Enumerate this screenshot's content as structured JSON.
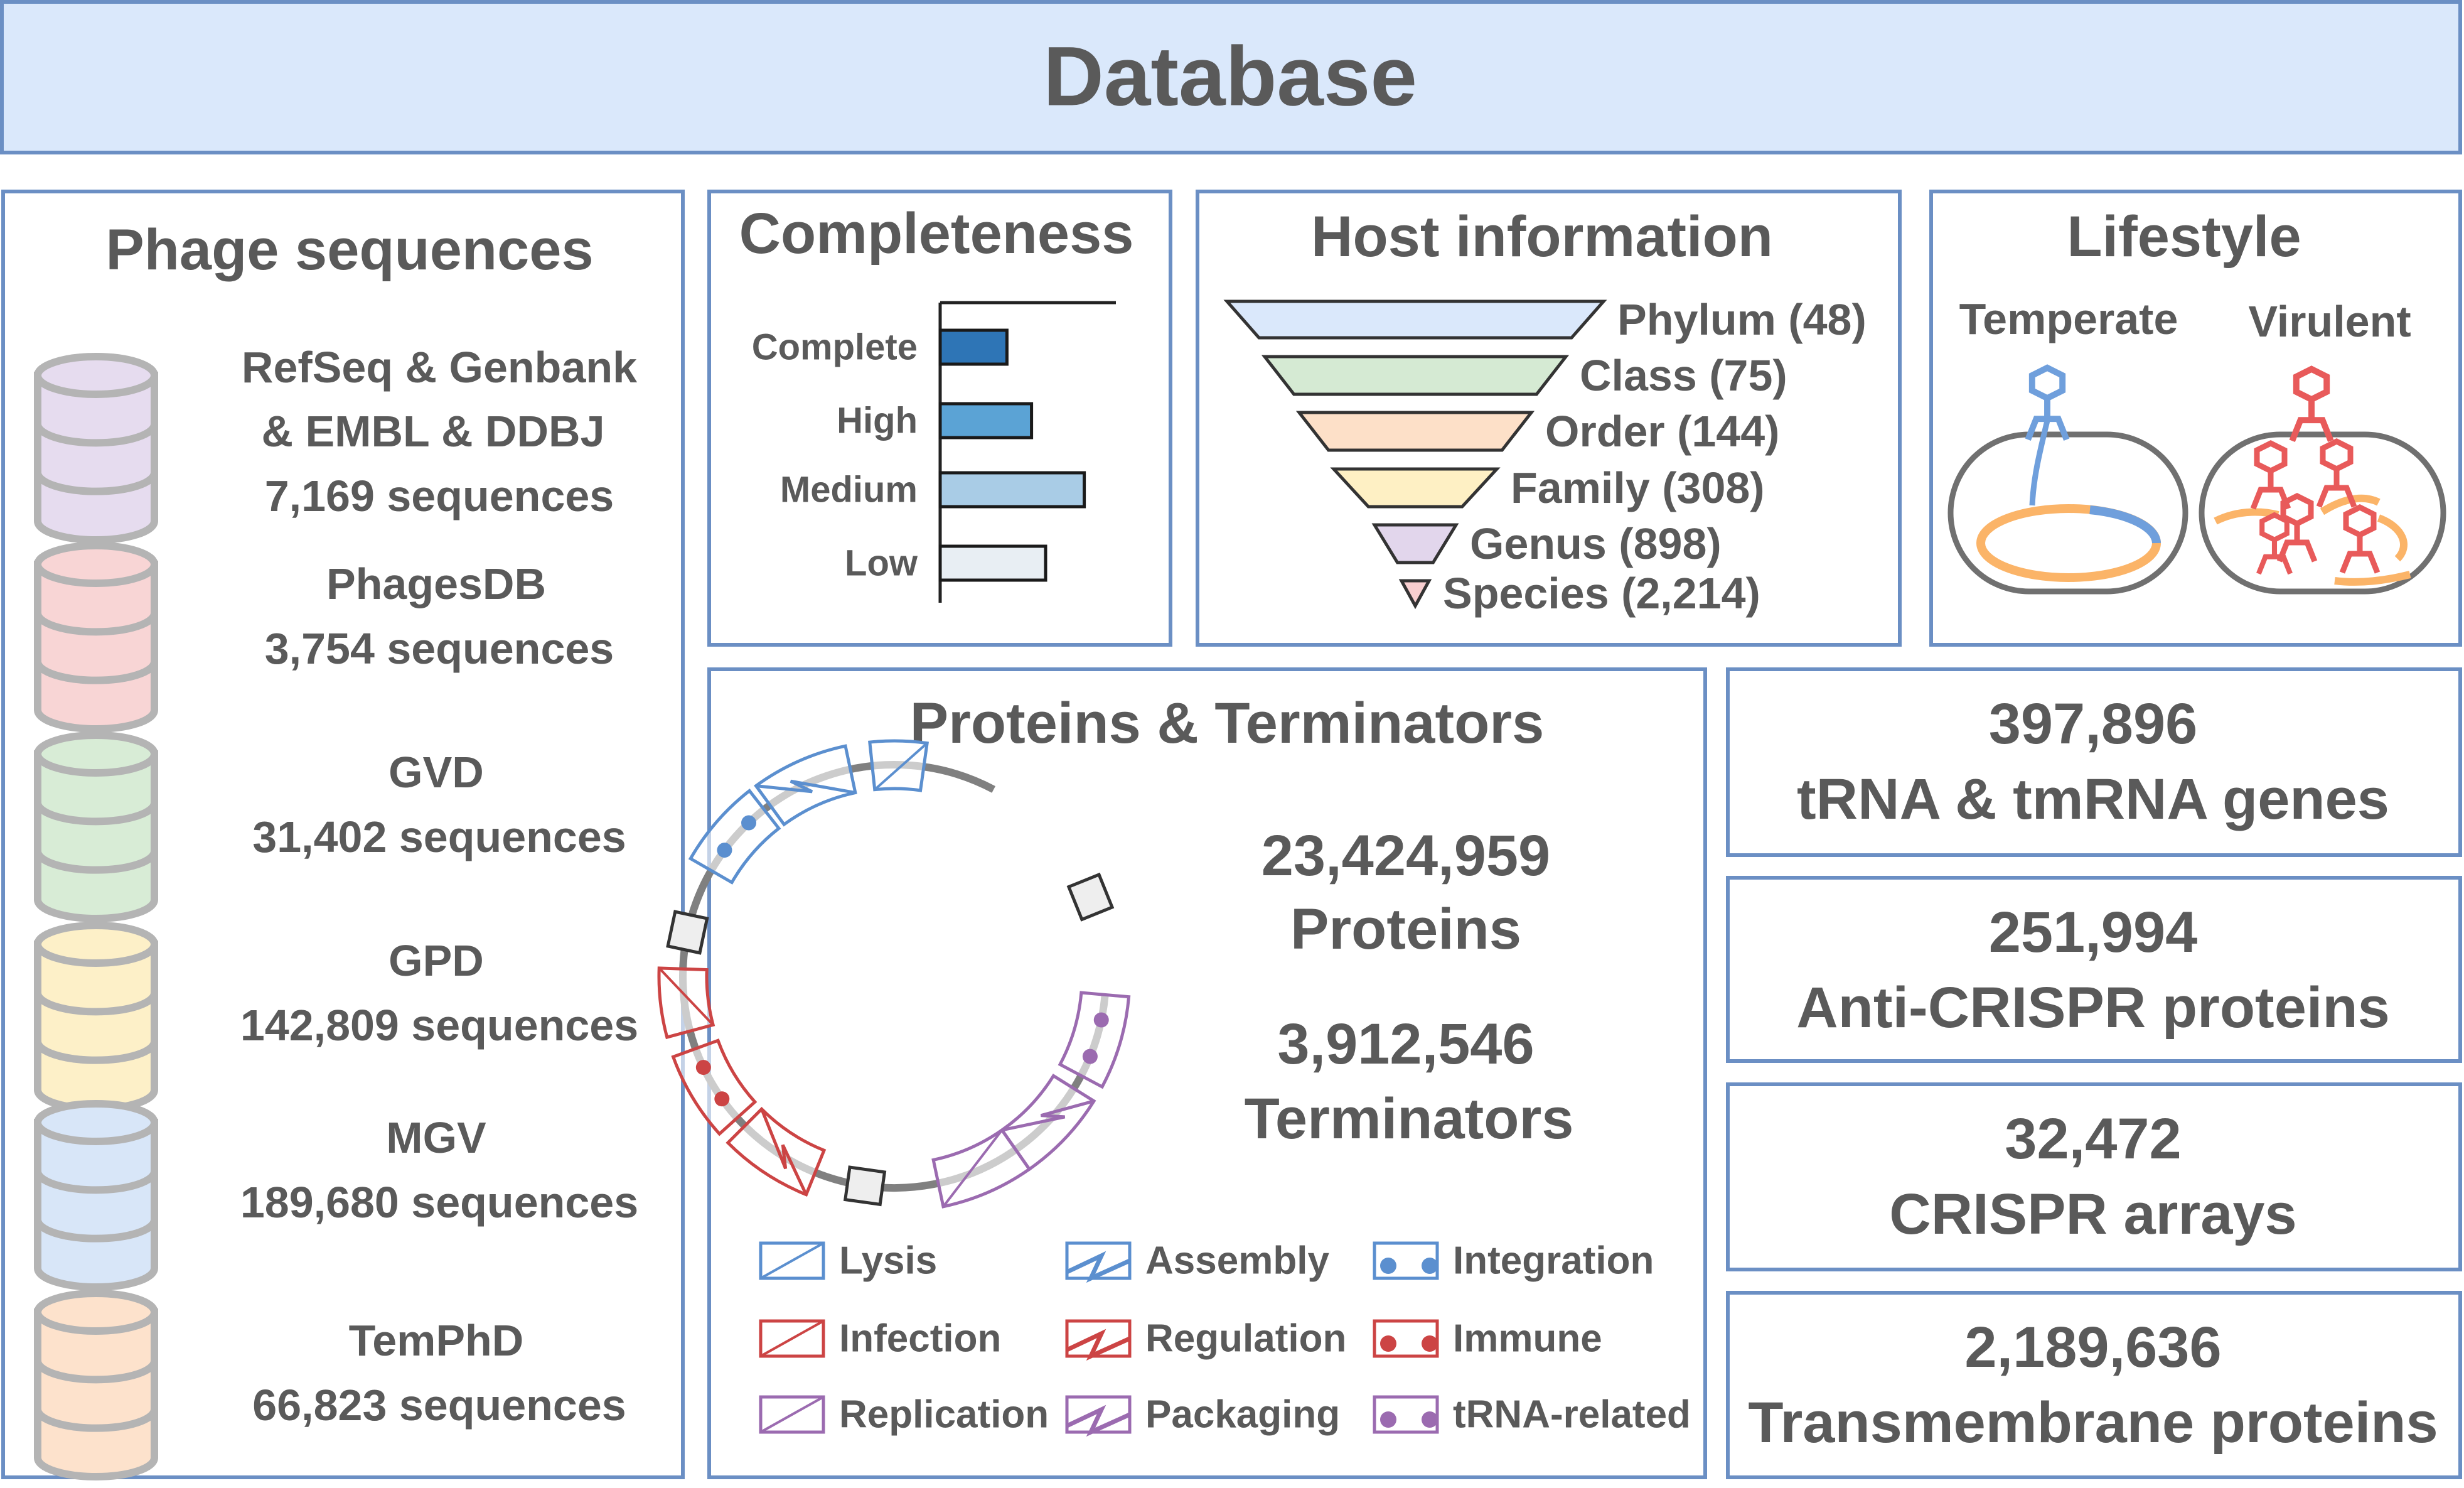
{
  "header": {
    "title": "Database"
  },
  "phage_sequences": {
    "title": "Phage sequences",
    "sources": [
      {
        "name_lines": [
          "RefSeq & Genbank",
          "& EMBL & DDBJ"
        ],
        "count": "7,169 sequences",
        "color": "#e6dcef"
      },
      {
        "name_lines": [
          "PhagesDB"
        ],
        "count": "3,754 sequences",
        "color": "#f8d5d5"
      },
      {
        "name_lines": [
          "GVD"
        ],
        "count": "31,402 sequences",
        "color": "#d8ecd6"
      },
      {
        "name_lines": [
          "GPD"
        ],
        "count": "142,809 sequences",
        "color": "#fdf0c8"
      },
      {
        "name_lines": [
          "MGV"
        ],
        "count": "189,680 sequences",
        "color": "#d8e6f8"
      },
      {
        "name_lines": [
          "TemPhD"
        ],
        "count": "66,823 sequences",
        "color": "#fde2cc"
      }
    ]
  },
  "completeness": {
    "title": "Completeness",
    "bars": [
      {
        "label": "Complete",
        "value": 0.38,
        "color": "#2e75b6"
      },
      {
        "label": "High",
        "value": 0.52,
        "color": "#5ba3d5"
      },
      {
        "label": "Medium",
        "value": 0.82,
        "color": "#a9cce6"
      },
      {
        "label": "Low",
        "value": 0.6,
        "color": "#e8eef3"
      }
    ]
  },
  "host_information": {
    "title": "Host information",
    "levels": [
      {
        "label": "Phylum (48)",
        "color": "#dae8fb"
      },
      {
        "label": "Class (75)",
        "color": "#d5ead3"
      },
      {
        "label": "Order (144)",
        "color": "#fde0c8"
      },
      {
        "label": "Family (308)",
        "color": "#fef0c4"
      },
      {
        "label": "Genus (898)",
        "color": "#e2d6ec"
      },
      {
        "label": "Species (2,214)",
        "color": "#f8cfd0"
      }
    ]
  },
  "lifestyle": {
    "title": "Lifestyle",
    "temperate": "Temperate",
    "virulent": "Virulent",
    "temperate_color": "#6f9fdc",
    "virulent_color": "#e85a5a",
    "genome_color": "#fbb468"
  },
  "proteins": {
    "title": "Proteins & Terminators",
    "protein_count": "23,424,959",
    "protein_label": "Proteins",
    "terminator_count": "3,912,546",
    "terminator_label": "Terminators",
    "legend": [
      {
        "label": "Lysis",
        "color": "#5b8fcf",
        "glyph": "box"
      },
      {
        "label": "Assembly",
        "color": "#5b8fcf",
        "glyph": "zig"
      },
      {
        "label": "Integration",
        "color": "#5b8fcf",
        "glyph": "dots"
      },
      {
        "label": "Infection",
        "color": "#cc4444",
        "glyph": "box"
      },
      {
        "label": "Regulation",
        "color": "#cc4444",
        "glyph": "zig"
      },
      {
        "label": "Immune",
        "color": "#cc4444",
        "glyph": "dots"
      },
      {
        "label": "Replication",
        "color": "#9b6bb0",
        "glyph": "box"
      },
      {
        "label": "Packaging",
        "color": "#9b6bb0",
        "glyph": "zig"
      },
      {
        "label": "tRNA-related",
        "color": "#9b6bb0",
        "glyph": "dots"
      }
    ]
  },
  "stats": [
    {
      "count": "397,896",
      "label": "tRNA & tmRNA genes"
    },
    {
      "count": "251,994",
      "label": "Anti-CRISPR proteins"
    },
    {
      "count": "32,472",
      "label": "CRISPR arrays"
    },
    {
      "count": "2,189,636",
      "label": "Transmembrane proteins"
    }
  ],
  "theme": {
    "border": "#6b8fc4",
    "header_fill": "#dae8fb",
    "text": "#5a5a5a"
  }
}
